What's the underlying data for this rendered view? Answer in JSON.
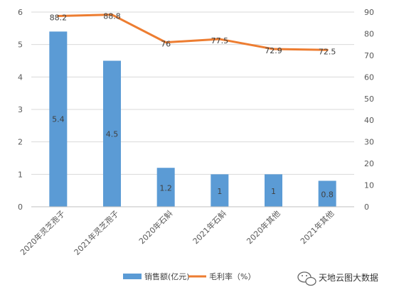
{
  "chart_data": {
    "type": "bar",
    "categories": [
      "2020年灵芝孢子",
      "2021年灵芝孢子",
      "2020年石斛",
      "2021年石斛",
      "2020年其他",
      "2021年其他"
    ],
    "series": [
      {
        "name": "销售额(亿元)",
        "type": "bar",
        "axis": "left",
        "color": "#5B9BD5",
        "values": [
          5.4,
          4.5,
          1.2,
          1,
          1,
          0.8
        ],
        "value_labels": [
          "5.4",
          "4.5",
          "1.2",
          "1",
          "1",
          "0.8"
        ]
      },
      {
        "name": "毛利率（%）",
        "type": "line",
        "axis": "right",
        "color": "#ED7D31",
        "values": [
          88.2,
          88.8,
          76,
          77.5,
          72.9,
          72.5
        ],
        "value_labels": [
          "88.2",
          "88.8",
          "76",
          "77.5",
          "72.9",
          "72.5"
        ]
      }
    ],
    "y_left": {
      "ylim": [
        0,
        6
      ],
      "ticks": [
        "0",
        "1",
        "2",
        "3",
        "4",
        "5",
        "6"
      ]
    },
    "y_right": {
      "ylim": [
        0,
        90
      ],
      "ticks": [
        "0",
        "10",
        "20",
        "30",
        "40",
        "50",
        "60",
        "70",
        "80",
        "90"
      ]
    },
    "grid": true,
    "legend_position": "bottom"
  },
  "watermark": {
    "text": "天地云图大数据",
    "icon": "wechat-icon"
  }
}
